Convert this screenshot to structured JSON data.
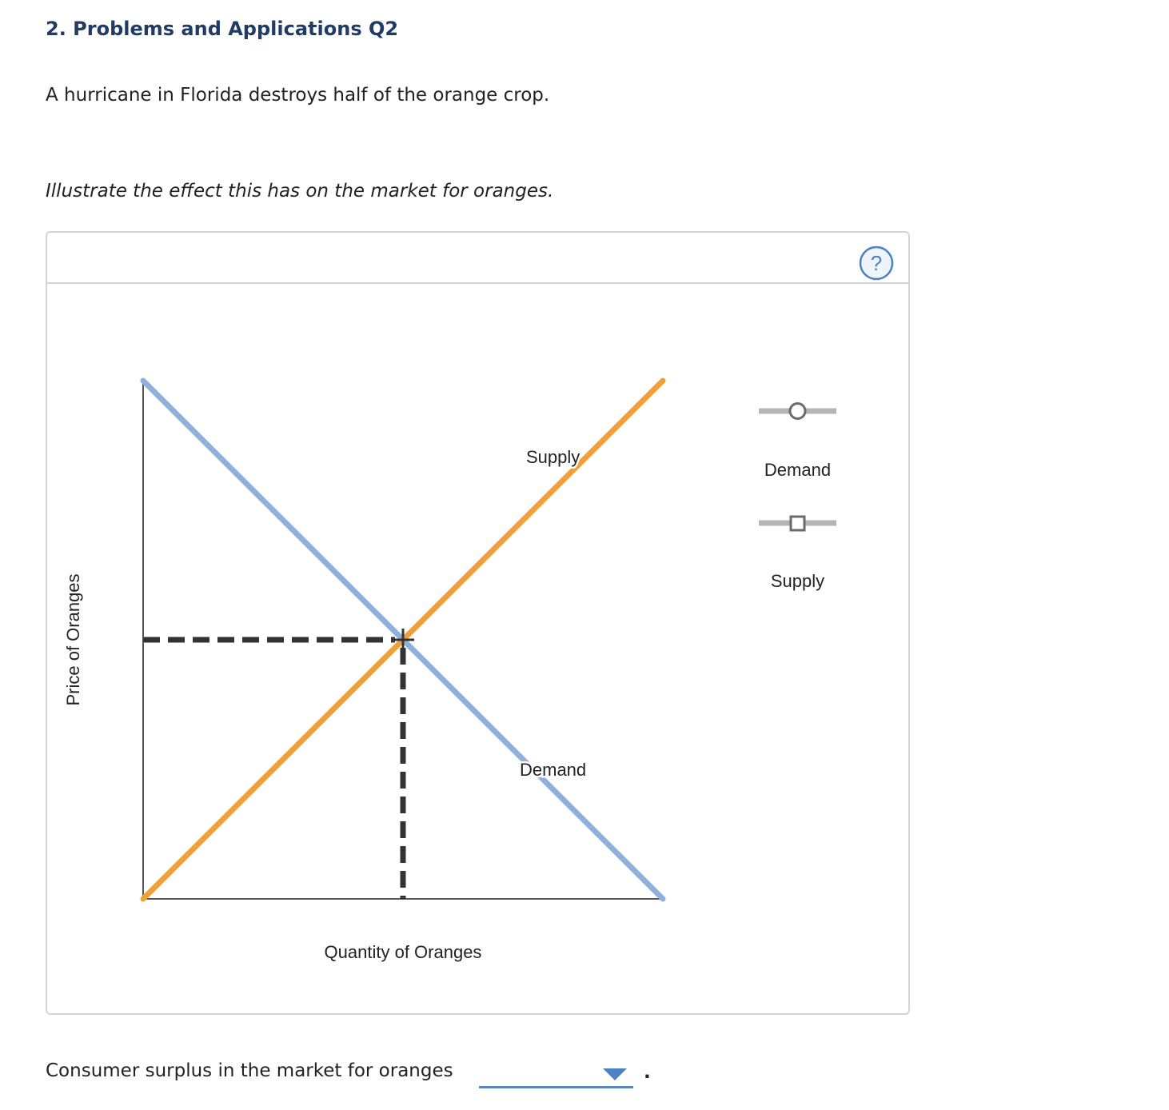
{
  "question": {
    "title": "2. Problems and Applications Q2",
    "prompt": "A hurricane in Florida destroys half of the orange crop.",
    "instruction": "Illustrate the effect this has on the market for oranges."
  },
  "help": {
    "icon": "question-mark-icon",
    "label": "?"
  },
  "chart_data": {
    "type": "line",
    "title": "",
    "xlabel": "Quantity of Oranges",
    "ylabel": "Price of Oranges",
    "xlim": [
      0,
      100
    ],
    "ylim": [
      0,
      100
    ],
    "grid": false,
    "ticks": false,
    "series": [
      {
        "name": "Demand",
        "color": "#8fb1d9",
        "points": [
          [
            0,
            100
          ],
          [
            100,
            0
          ]
        ]
      },
      {
        "name": "Supply",
        "color": "#f0a03a",
        "points": [
          [
            0,
            0
          ],
          [
            100,
            100
          ]
        ]
      }
    ],
    "equilibrium": {
      "x": 50,
      "y": 50,
      "color": "#333333"
    }
  },
  "palette": {
    "tools": [
      {
        "label": "Demand",
        "marker": "circle",
        "icon": "demand-circle-tool-icon"
      },
      {
        "label": "Supply",
        "marker": "square",
        "icon": "supply-square-tool-icon"
      }
    ],
    "line_color": "#b5b5b5",
    "marker_color": "#6b6b6b"
  },
  "consumer_surplus": {
    "label": "Consumer surplus in the market for oranges",
    "selected": "",
    "period": ".",
    "accent": "#4e80c2"
  }
}
